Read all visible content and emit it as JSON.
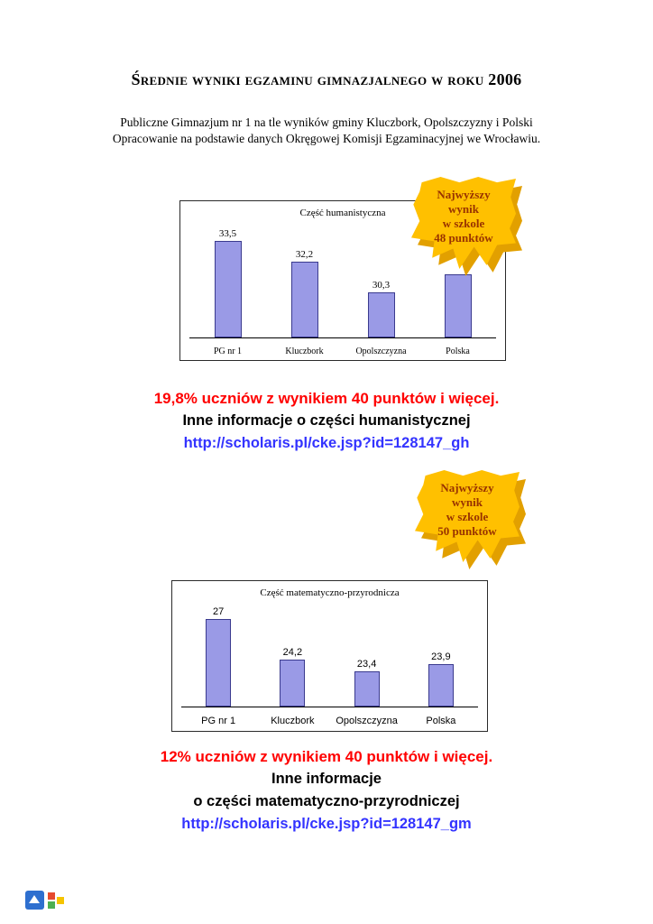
{
  "page": {
    "title": "Średnie wyniki egzaminu gimnazjalnego w roku 2006",
    "subtitle_line1": "Publiczne Gimnazjum nr 1 na tle wyników gminy Kluczbork, Opolszczyzny i Polski",
    "subtitle_line2": "Opracowanie na podstawie danych Okręgowej Komisji Egzaminacyjnej we Wrocławiu."
  },
  "badges": {
    "humanistic": "Najwyższy\nwynik\nw szkole\n48 punktów",
    "math": "Najwyższy\nwynik\nw szkole\n50 punktów"
  },
  "sections": {
    "humanistic": {
      "stat": "19,8% uczniów z wynikiem 40 punktów i więcej.",
      "info": "Inne informacje o części humanistycznej",
      "link": "http://scholaris.pl/cke.jsp?id=128147_gh"
    },
    "math": {
      "stat": "12% uczniów z wynikiem 40 punktów i więcej.",
      "info_line1": "Inne informacje",
      "info_line2": "o części matematyczno-przyrodniczej",
      "link": "http://scholaris.pl/cke.jsp?id=128147_gm"
    }
  },
  "colors": {
    "stat_red": "#ff0000",
    "link_blue": "#3333ff",
    "badge_gold": "#ffc000",
    "badge_text": "#993300",
    "bar_fill": "#9a9ae6",
    "bar_border": "#3a3a8e"
  },
  "chart_data": [
    {
      "type": "bar",
      "title": "Część humanistyczna",
      "categories": [
        "PG nr 1",
        "Kluczbork",
        "Opolszczyzna",
        "Polska"
      ],
      "values": [
        33.5,
        32.2,
        30.3,
        31.4
      ],
      "data_labels": [
        "33,5",
        "32,2",
        "30,3",
        ""
      ],
      "ylim": [
        27.5,
        34.5
      ],
      "grid": false,
      "legend": "none",
      "bar_color": "#9a9ae6",
      "bar_border": "#3a3a8e"
    },
    {
      "type": "bar",
      "title": "Część matematyczno-przyrodnicza",
      "categories": [
        "PG nr 1",
        "Kluczbork",
        "Opolszczyzna",
        "Polska"
      ],
      "values": [
        27,
        24.2,
        23.4,
        23.9
      ],
      "data_labels": [
        "27",
        "24,2",
        "23,4",
        "23,9"
      ],
      "ylim": [
        21,
        28
      ],
      "grid": false,
      "legend": "none",
      "bar_color": "#9a9ae6",
      "bar_border": "#3a3a8e"
    }
  ]
}
